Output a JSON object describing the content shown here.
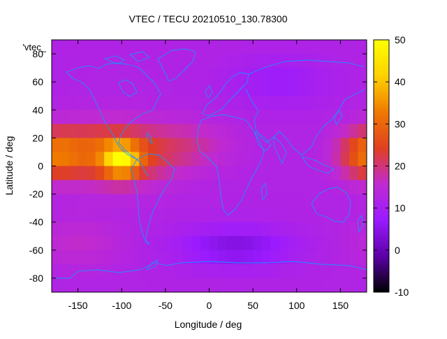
{
  "chart_data": {
    "type": "heatmap",
    "title": "VTEC / TECU 20210510_130.78300",
    "xlabel": "Longitude / deg",
    "ylabel": "Latitude / deg",
    "key_label": "'vtec_",
    "xlim": [
      -180,
      180
    ],
    "ylim": [
      -90,
      90
    ],
    "x_ticks": [
      -150,
      -100,
      -50,
      0,
      50,
      100,
      150
    ],
    "y_ticks": [
      -80,
      -60,
      -40,
      -20,
      0,
      20,
      40,
      60,
      80
    ],
    "colorbar": {
      "range": [
        -10,
        50
      ],
      "ticks": [
        -10,
        0,
        10,
        20,
        30,
        40,
        50
      ],
      "palette": [
        "#000000",
        "#5c00a8",
        "#9a1bff",
        "#c02ad0",
        "#e14020",
        "#f07a00",
        "#ffd200",
        "#ffff00"
      ]
    },
    "coastline_color": "#1e90ff",
    "grid": false,
    "features": [
      {
        "lon": -100,
        "lat": 5,
        "value": 45
      },
      {
        "lon": -130,
        "lat": 12,
        "value": 30
      },
      {
        "lon": 175,
        "lat": 8,
        "value": 27
      },
      {
        "lon": -10,
        "lat": 15,
        "value": 22
      },
      {
        "lon": 30,
        "lat": -58,
        "value": 3
      },
      {
        "lon": 80,
        "lat": 60,
        "value": 7
      },
      {
        "lon": -150,
        "lat": -55,
        "value": 18
      }
    ]
  }
}
